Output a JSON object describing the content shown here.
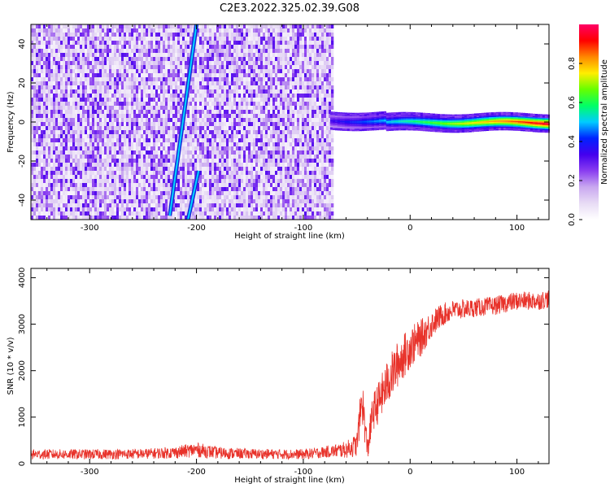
{
  "title": "C2E3.2022.325.02.39.G08",
  "colors": {
    "snr_line": "#e8322a",
    "gap": "#ffffff"
  },
  "chart_data": [
    {
      "type": "heatmap",
      "xlabel": "Height of straight line (km)",
      "ylabel": "Frequency (Hz)",
      "xlim": [
        -355,
        130
      ],
      "ylim": [
        -50,
        50
      ],
      "xticks": [
        "-300",
        "-200",
        "-100",
        "0",
        "100"
      ],
      "xtick_values": [
        -300,
        -200,
        -100,
        0,
        100
      ],
      "yticks": [
        "-40",
        "-20",
        "0",
        "20",
        "40"
      ],
      "ytick_values": [
        -40,
        -20,
        0,
        20,
        40
      ],
      "noise_region": {
        "x_from": -355,
        "x_to": -72,
        "amplitude": "0.2-0.5 speckled"
      },
      "signal_band": {
        "x_from": -75,
        "x_to": 130,
        "center_freq_hz": 0,
        "width_hz": 6,
        "peak_amplitude": 0.9
      },
      "aliased_tracks": [
        {
          "points": [
            [
              -225,
              -48
            ],
            [
              -200,
              50
            ]
          ]
        },
        {
          "points": [
            [
              -208,
              -50
            ],
            [
              -198,
              -25
            ]
          ]
        }
      ],
      "colorbar": {
        "label": "Normalized spectral amplitude",
        "range": [
          0,
          1
        ],
        "ticks": [
          "0.0",
          "0.2",
          "0.4",
          "0.6",
          "0.8"
        ],
        "tick_values": [
          0.0,
          0.2,
          0.4,
          0.6,
          0.8
        ],
        "colormap": [
          "#ffffff",
          "#e8dcf5",
          "#c9a8f0",
          "#8a3df0",
          "#4400ee",
          "#0022ff",
          "#00ccff",
          "#00ff66",
          "#66ff00",
          "#ffee00",
          "#ff8800",
          "#ff0000",
          "#ff0066"
        ]
      }
    },
    {
      "type": "line",
      "xlabel": "Height of straight line (km)",
      "ylabel": "SNR (10 * v/v)",
      "xlim": [
        -355,
        130
      ],
      "ylim": [
        0,
        4200
      ],
      "xticks": [
        "-300",
        "-200",
        "-100",
        "0",
        "100"
      ],
      "xtick_values": [
        -300,
        -200,
        -100,
        0,
        100
      ],
      "yticks": [
        "0",
        "1000",
        "2000",
        "3000",
        "4000"
      ],
      "ytick_values": [
        0,
        1000,
        2000,
        3000,
        4000
      ],
      "series": [
        {
          "color": "#e8322a",
          "x": [
            -355,
            -300,
            -250,
            -220,
            -200,
            -180,
            -150,
            -100,
            -75,
            -60,
            -50,
            -45,
            -40,
            -35,
            -30,
            -20,
            -10,
            0,
            10,
            20,
            30,
            40,
            60,
            80,
            100,
            120,
            130
          ],
          "y": [
            200,
            200,
            210,
            240,
            300,
            230,
            210,
            200,
            260,
            300,
            400,
            1400,
            300,
            1100,
            1300,
            1800,
            2200,
            2500,
            2700,
            3000,
            3200,
            3300,
            3350,
            3400,
            3500,
            3500,
            3550
          ],
          "noise": [
            110,
            110,
            110,
            130,
            160,
            130,
            110,
            110,
            130,
            180,
            250,
            500,
            300,
            400,
            450,
            500,
            500,
            450,
            400,
            300,
            250,
            220,
            200,
            200,
            200,
            200,
            200
          ]
        }
      ]
    }
  ]
}
